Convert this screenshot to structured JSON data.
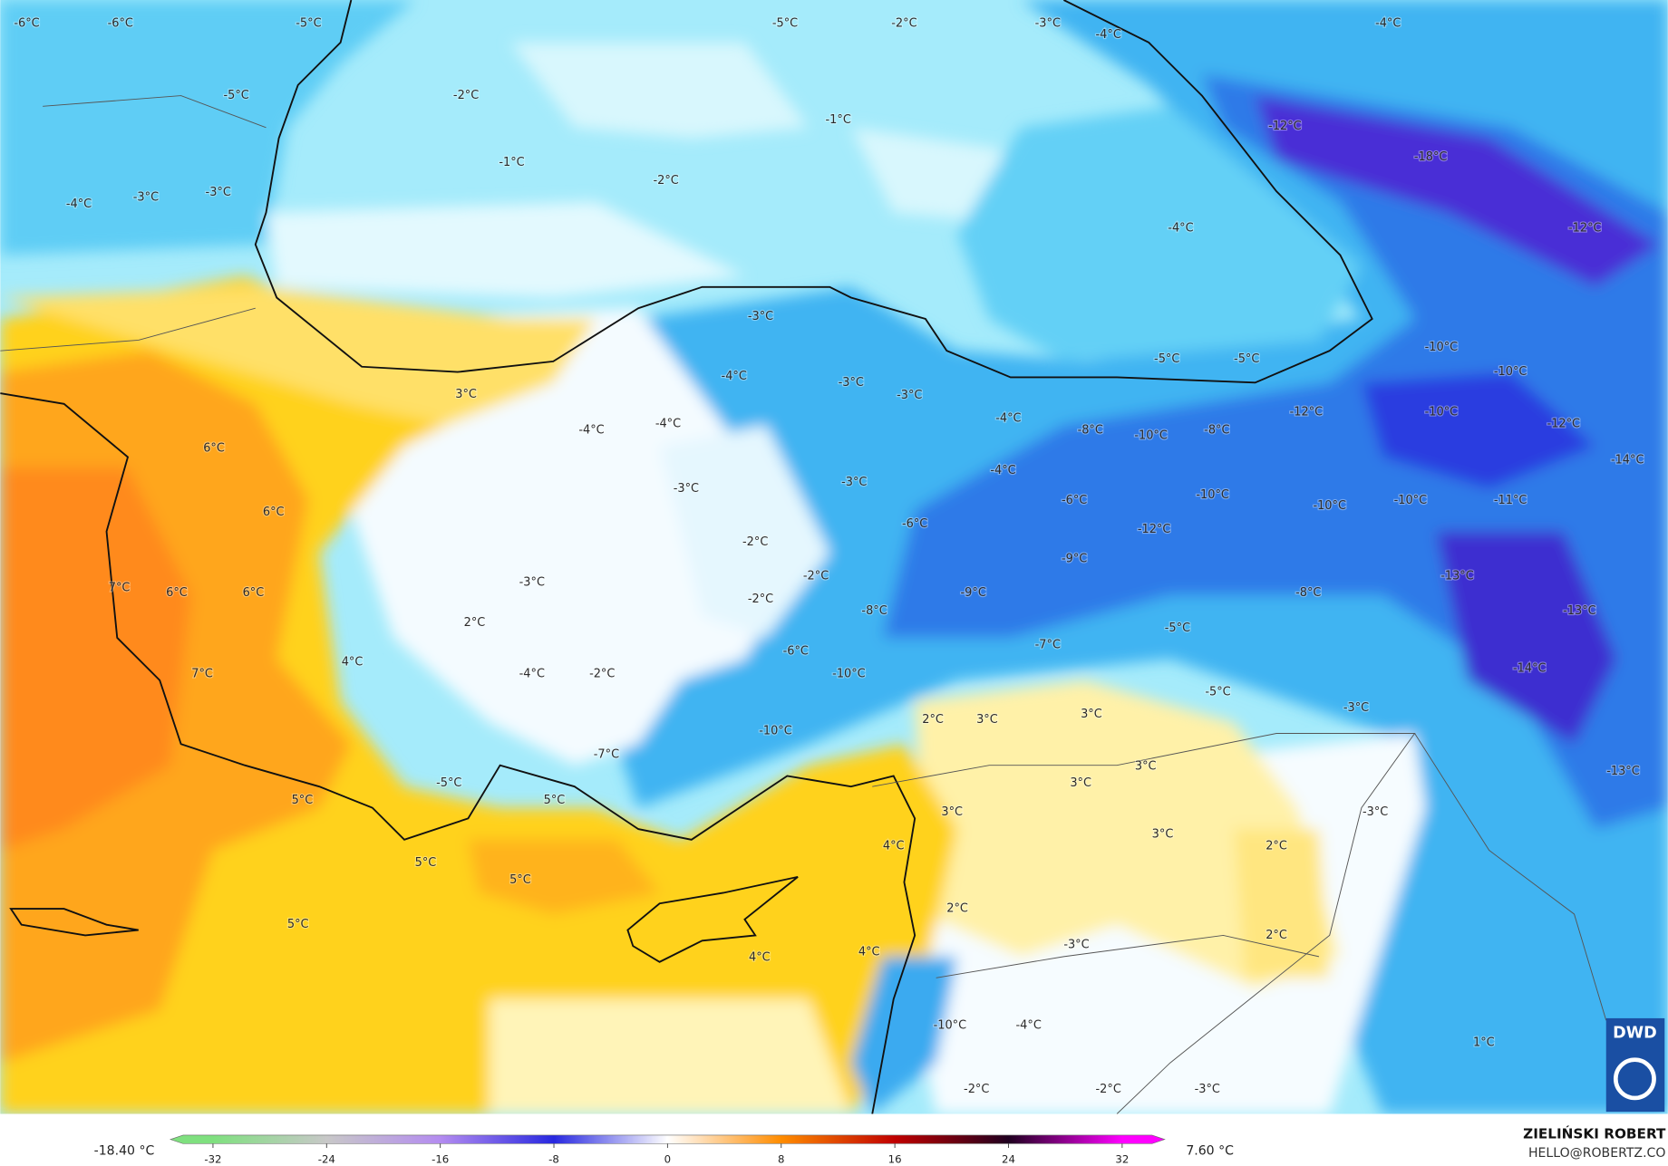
{
  "map": {
    "labels": [
      "-6°C",
      "-6°C",
      "-5°C",
      "-5°C",
      "-2°C",
      "-3°C",
      "-4°C",
      "-4°C",
      "-5°C",
      "-2°C",
      "-1°C",
      "-1°C",
      "-2°C",
      "-12°C",
      "-18°C",
      "-4°C",
      "-3°C",
      "-3°C",
      "-4°C",
      "-12°C",
      "-3°C",
      "-5°C",
      "-5°C",
      "-10°C",
      "-10°C",
      "3°C",
      "-4°C",
      "-3°C",
      "-3°C",
      "-4°C",
      "-12°C",
      "-10°C",
      "-12°C",
      "-4°C",
      "-4°C",
      "-8°C",
      "-10°C",
      "-8°C",
      "-14°C",
      "6°C",
      "-4°C",
      "-3°C",
      "-3°C",
      "-10°C",
      "-10°C",
      "-10°C",
      "-11°C",
      "-6°C",
      "6°C",
      "-6°C",
      "-12°C",
      "-2°C",
      "-9°C",
      "7°C",
      "6°C",
      "6°C",
      "-3°C",
      "-2°C",
      "-13°C",
      "-9°C",
      "-8°C",
      "-2°C",
      "-13°C",
      "2°C",
      "-8°C",
      "-5°C",
      "4°C",
      "-6°C",
      "-7°C",
      "7°C",
      "-4°C",
      "-2°C",
      "-10°C",
      "-14°C",
      "-5°C",
      "2°C",
      "3°C",
      "3°C",
      "-3°C",
      "-10°C",
      "-7°C",
      "3°C",
      "-13°C",
      "-5°C",
      "3°C",
      "5°C",
      "5°C",
      "3°C",
      "-3°C",
      "4°C",
      "3°C",
      "2°C",
      "5°C",
      "5°C",
      "2°C",
      "5°C",
      "-3°C",
      "2°C",
      "4°C",
      "4°C",
      "-10°C",
      "-4°C",
      "1°C",
      "-2°C",
      "-2°C",
      "-3°C"
    ]
  },
  "colorbar": {
    "min_label": "-18.40 °C",
    "max_label": "7.60 °C",
    "lim": [
      -35,
      35
    ],
    "ticks": [
      -32,
      -24,
      -16,
      -8,
      0,
      8,
      16,
      24,
      32
    ],
    "colors": [
      "#7fe07f",
      "#c8c8c8",
      "#b48cf0",
      "#2828e0",
      "#ffffff",
      "#ff8c00",
      "#c00000",
      "#200020",
      "#ff00ff"
    ]
  },
  "credits": {
    "author": "ZIELIŃSKI ROBERT",
    "email": "HELLO@ROBERTZ.CO",
    "logo": "DWD"
  }
}
